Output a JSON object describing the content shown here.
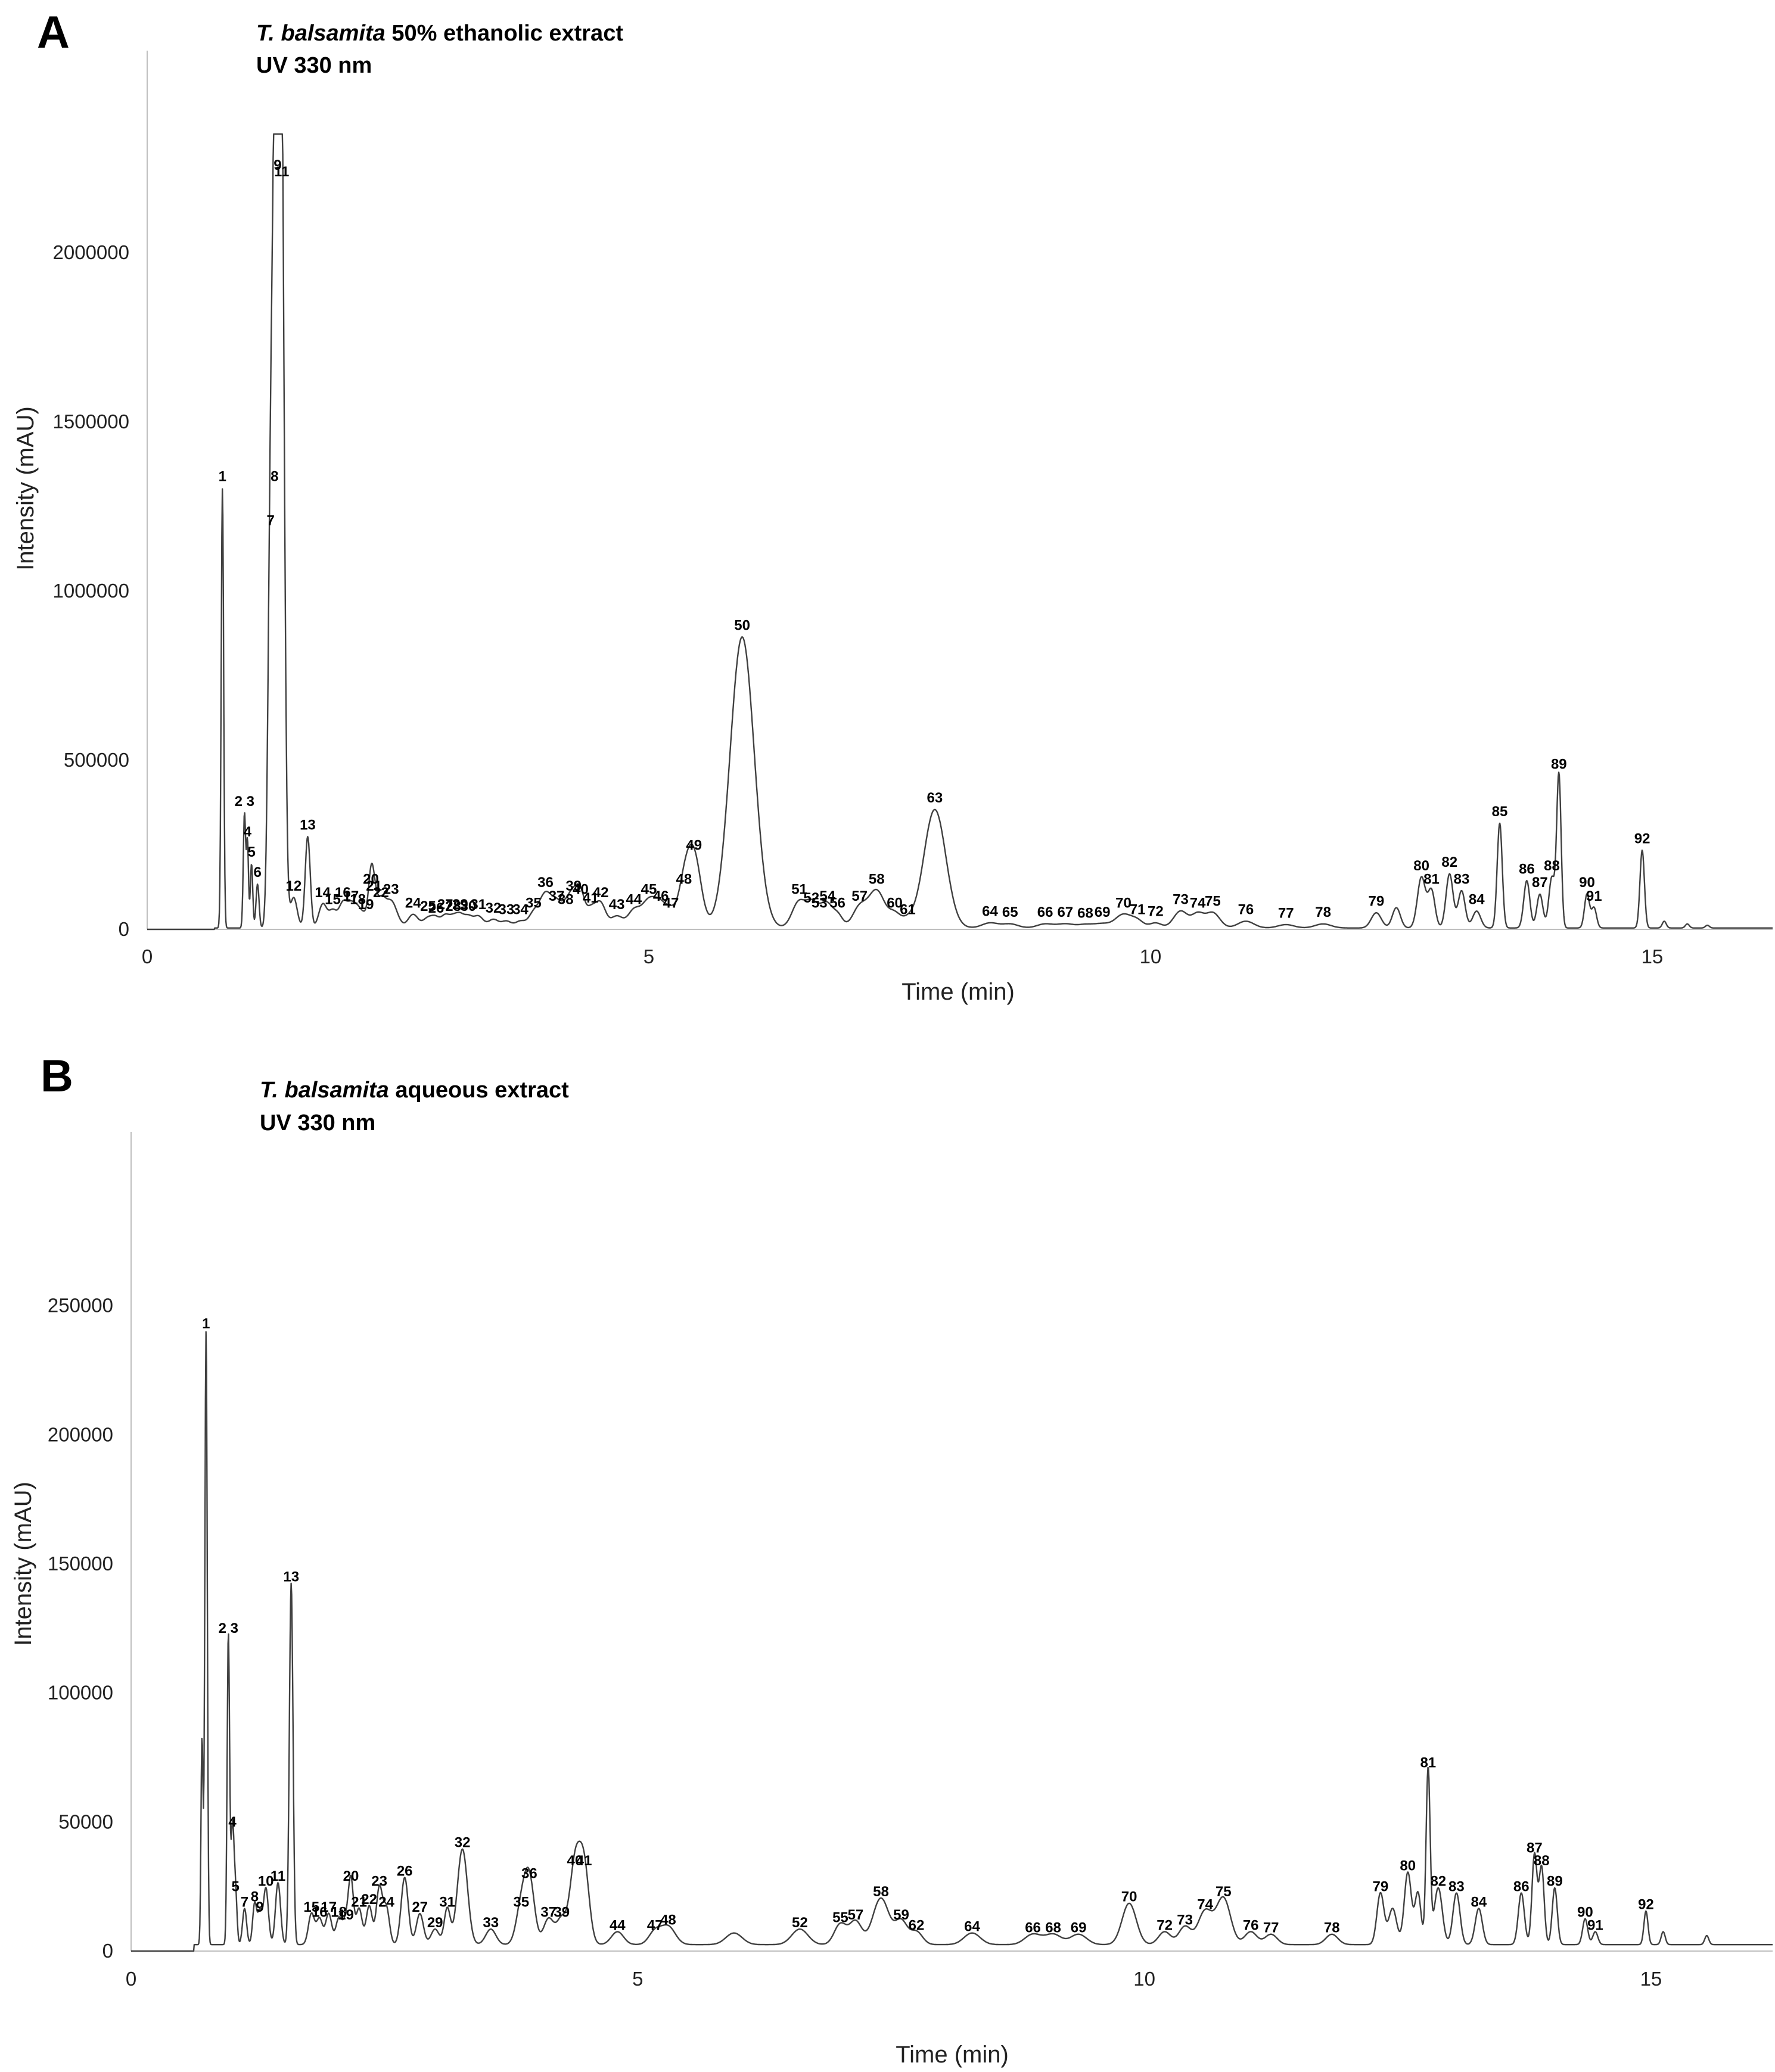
{
  "chart_data": [
    {
      "panel": "A",
      "type": "line",
      "title_italic": "T. balsamita",
      "title_rest": " 50% ethanolic extract",
      "subtitle": "UV  330 nm",
      "xlabel": "Time (min)",
      "ylabel": "Intensity (mAU)",
      "xlim": [
        0,
        16.2
      ],
      "ylim": [
        0,
        2350000
      ],
      "xticks": [
        0,
        5,
        10,
        15
      ],
      "yticks": [
        0,
        500000,
        1000000,
        1500000,
        2000000
      ],
      "baseline": 4000,
      "peaks": [
        {
          "label": "1",
          "x": 0.75,
          "y": 1300000,
          "w": 0.012
        },
        {
          "label": "2 3",
          "x": 0.97,
          "y": 340000,
          "w": 0.012
        },
        {
          "label": "4",
          "x": 1.0,
          "y": 250000,
          "w": 0.01
        },
        {
          "label": "5",
          "x": 1.04,
          "y": 190000,
          "w": 0.012
        },
        {
          "label": "6",
          "x": 1.1,
          "y": 130000,
          "w": 0.015
        },
        {
          "label": "7",
          "x": 1.23,
          "y": 1170000,
          "w": 0.025
        },
        {
          "label": "8",
          "x": 1.27,
          "y": 1300000,
          "w": 0.025
        },
        {
          "label": "9",
          "x": 1.3,
          "y": 2220000,
          "w": 0.025
        },
        {
          "label": "11",
          "x": 1.34,
          "y": 2200000,
          "w": 0.028
        },
        {
          "label": "12",
          "x": 1.46,
          "y": 90000,
          "w": 0.035
        },
        {
          "label": "13",
          "x": 1.6,
          "y": 270000,
          "w": 0.025
        },
        {
          "label": "14",
          "x": 1.75,
          "y": 70000,
          "w": 0.04
        },
        {
          "label": "15",
          "x": 1.85,
          "y": 50000,
          "w": 0.04
        },
        {
          "label": "16",
          "x": 1.95,
          "y": 70000,
          "w": 0.04
        },
        {
          "label": "17",
          "x": 2.03,
          "y": 60000,
          "w": 0.04
        },
        {
          "label": "18",
          "x": 2.1,
          "y": 50000,
          "w": 0.04
        },
        {
          "label": "19",
          "x": 2.18,
          "y": 35000,
          "w": 0.04
        },
        {
          "label": "20",
          "x": 2.23,
          "y": 110000,
          "w": 0.025
        },
        {
          "label": "21",
          "x": 2.26,
          "y": 90000,
          "w": 0.03
        },
        {
          "label": "22",
          "x": 2.33,
          "y": 70000,
          "w": 0.04
        },
        {
          "label": "23",
          "x": 2.43,
          "y": 80000,
          "w": 0.06
        },
        {
          "label": "24",
          "x": 2.65,
          "y": 40000,
          "w": 0.05
        },
        {
          "label": "25",
          "x": 2.8,
          "y": 30000,
          "w": 0.05
        },
        {
          "label": "26",
          "x": 2.88,
          "y": 25000,
          "w": 0.04
        },
        {
          "label": "27",
          "x": 2.97,
          "y": 35000,
          "w": 0.04
        },
        {
          "label": "28",
          "x": 3.05,
          "y": 30000,
          "w": 0.04
        },
        {
          "label": "29",
          "x": 3.12,
          "y": 35000,
          "w": 0.04
        },
        {
          "label": "30",
          "x": 3.2,
          "y": 30000,
          "w": 0.04
        },
        {
          "label": "31",
          "x": 3.3,
          "y": 35000,
          "w": 0.05
        },
        {
          "label": "32",
          "x": 3.45,
          "y": 25000,
          "w": 0.05
        },
        {
          "label": "33",
          "x": 3.58,
          "y": 20000,
          "w": 0.05
        },
        {
          "label": "34",
          "x": 3.72,
          "y": 20000,
          "w": 0.05
        },
        {
          "label": "35",
          "x": 3.85,
          "y": 40000,
          "w": 0.05
        },
        {
          "label": "36",
          "x": 3.97,
          "y": 100000,
          "w": 0.06
        },
        {
          "label": "37",
          "x": 4.08,
          "y": 60000,
          "w": 0.05
        },
        {
          "label": "38",
          "x": 4.17,
          "y": 50000,
          "w": 0.05
        },
        {
          "label": "39",
          "x": 4.25,
          "y": 90000,
          "w": 0.05
        },
        {
          "label": "40",
          "x": 4.32,
          "y": 80000,
          "w": 0.04
        },
        {
          "label": "41",
          "x": 4.42,
          "y": 55000,
          "w": 0.05
        },
        {
          "label": "42",
          "x": 4.52,
          "y": 70000,
          "w": 0.05
        },
        {
          "label": "43",
          "x": 4.68,
          "y": 35000,
          "w": 0.06
        },
        {
          "label": "44",
          "x": 4.85,
          "y": 50000,
          "w": 0.06
        },
        {
          "label": "45",
          "x": 5.0,
          "y": 80000,
          "w": 0.07
        },
        {
          "label": "46",
          "x": 5.12,
          "y": 60000,
          "w": 0.06
        },
        {
          "label": "47",
          "x": 5.22,
          "y": 40000,
          "w": 0.05
        },
        {
          "label": "48",
          "x": 5.35,
          "y": 110000,
          "w": 0.06
        },
        {
          "label": "49",
          "x": 5.45,
          "y": 210000,
          "w": 0.07
        },
        {
          "label": "50",
          "x": 5.93,
          "y": 860000,
          "w": 0.12
        },
        {
          "label": "51",
          "x": 6.5,
          "y": 80000,
          "w": 0.07
        },
        {
          "label": "52",
          "x": 6.62,
          "y": 55000,
          "w": 0.05
        },
        {
          "label": "53",
          "x": 6.7,
          "y": 40000,
          "w": 0.05
        },
        {
          "label": "54",
          "x": 6.78,
          "y": 60000,
          "w": 0.05
        },
        {
          "label": "56",
          "x": 6.88,
          "y": 40000,
          "w": 0.05
        },
        {
          "label": "57",
          "x": 7.1,
          "y": 60000,
          "w": 0.07
        },
        {
          "label": "58",
          "x": 7.27,
          "y": 110000,
          "w": 0.08
        },
        {
          "label": "60",
          "x": 7.45,
          "y": 40000,
          "w": 0.06
        },
        {
          "label": "61",
          "x": 7.58,
          "y": 20000,
          "w": 0.06
        },
        {
          "label": "63",
          "x": 7.85,
          "y": 350000,
          "w": 0.11
        },
        {
          "label": "64",
          "x": 8.4,
          "y": 15000,
          "w": 0.08
        },
        {
          "label": "65",
          "x": 8.6,
          "y": 12000,
          "w": 0.08
        },
        {
          "label": "66",
          "x": 8.95,
          "y": 12000,
          "w": 0.08
        },
        {
          "label": "67",
          "x": 9.15,
          "y": 12000,
          "w": 0.08
        },
        {
          "label": "68",
          "x": 9.35,
          "y": 10000,
          "w": 0.08
        },
        {
          "label": "69",
          "x": 9.52,
          "y": 12000,
          "w": 0.08
        },
        {
          "label": "70",
          "x": 9.73,
          "y": 40000,
          "w": 0.08
        },
        {
          "label": "71",
          "x": 9.87,
          "y": 20000,
          "w": 0.06
        },
        {
          "label": "72",
          "x": 10.05,
          "y": 15000,
          "w": 0.06
        },
        {
          "label": "73",
          "x": 10.3,
          "y": 50000,
          "w": 0.07
        },
        {
          "label": "74",
          "x": 10.47,
          "y": 40000,
          "w": 0.06
        },
        {
          "label": "75",
          "x": 10.62,
          "y": 45000,
          "w": 0.07
        },
        {
          "label": "76",
          "x": 10.95,
          "y": 20000,
          "w": 0.08
        },
        {
          "label": "77",
          "x": 11.35,
          "y": 10000,
          "w": 0.08
        },
        {
          "label": "78",
          "x": 11.72,
          "y": 12000,
          "w": 0.08
        },
        {
          "label": "79",
          "x": 12.25,
          "y": 45000,
          "w": 0.05
        },
        {
          "label": "",
          "x": 12.45,
          "y": 60000,
          "w": 0.04
        },
        {
          "label": "80",
          "x": 12.7,
          "y": 150000,
          "w": 0.04
        },
        {
          "label": "81",
          "x": 12.8,
          "y": 110000,
          "w": 0.035
        },
        {
          "label": "82",
          "x": 12.98,
          "y": 160000,
          "w": 0.035
        },
        {
          "label": "83",
          "x": 13.1,
          "y": 110000,
          "w": 0.035
        },
        {
          "label": "84",
          "x": 13.25,
          "y": 50000,
          "w": 0.04
        },
        {
          "label": "85",
          "x": 13.48,
          "y": 310000,
          "w": 0.025
        },
        {
          "label": "86",
          "x": 13.75,
          "y": 140000,
          "w": 0.03
        },
        {
          "label": "87",
          "x": 13.88,
          "y": 100000,
          "w": 0.03
        },
        {
          "label": "88",
          "x": 14.0,
          "y": 150000,
          "w": 0.03
        },
        {
          "label": "89",
          "x": 14.07,
          "y": 450000,
          "w": 0.022
        },
        {
          "label": "90",
          "x": 14.35,
          "y": 100000,
          "w": 0.025
        },
        {
          "label": "91",
          "x": 14.42,
          "y": 60000,
          "w": 0.025
        },
        {
          "label": "92",
          "x": 14.9,
          "y": 230000,
          "w": 0.022
        },
        {
          "label": "",
          "x": 15.12,
          "y": 20000,
          "w": 0.02
        },
        {
          "label": "",
          "x": 15.35,
          "y": 12000,
          "w": 0.02
        },
        {
          "label": "",
          "x": 15.55,
          "y": 8000,
          "w": 0.02
        }
      ]
    },
    {
      "panel": "B",
      "type": "line",
      "title_italic": "T. balsamita",
      "title_rest": " aqueous extract",
      "subtitle": "UV  330 nm",
      "xlabel": "Time (min)",
      "ylabel": "Intensity (mAU)",
      "xlim": [
        0,
        16.2
      ],
      "ylim": [
        0,
        285000
      ],
      "xticks": [
        0,
        5,
        10,
        15
      ],
      "yticks": [
        0,
        50000,
        100000,
        150000,
        200000,
        250000
      ],
      "baseline": 2500,
      "peaks": [
        {
          "label": "",
          "x": 0.7,
          "y": 80000,
          "w": 0.01
        },
        {
          "label": "1",
          "x": 0.74,
          "y": 238000,
          "w": 0.012
        },
        {
          "label": "2 3",
          "x": 0.96,
          "y": 120000,
          "w": 0.012
        },
        {
          "label": "4",
          "x": 1.0,
          "y": 45000,
          "w": 0.015
        },
        {
          "label": "5",
          "x": 1.03,
          "y": 20000,
          "w": 0.015
        },
        {
          "label": "7",
          "x": 1.12,
          "y": 14000,
          "w": 0.02
        },
        {
          "label": "8",
          "x": 1.22,
          "y": 16000,
          "w": 0.02
        },
        {
          "label": "9",
          "x": 1.27,
          "y": 12000,
          "w": 0.02
        },
        {
          "label": "10",
          "x": 1.33,
          "y": 22000,
          "w": 0.025
        },
        {
          "label": "11",
          "x": 1.45,
          "y": 24000,
          "w": 0.025
        },
        {
          "label": "13",
          "x": 1.58,
          "y": 140000,
          "w": 0.018
        },
        {
          "label": "15",
          "x": 1.78,
          "y": 12000,
          "w": 0.03
        },
        {
          "label": "16",
          "x": 1.86,
          "y": 10000,
          "w": 0.03
        },
        {
          "label": "17",
          "x": 1.95,
          "y": 12000,
          "w": 0.03
        },
        {
          "label": "18",
          "x": 2.05,
          "y": 10000,
          "w": 0.03
        },
        {
          "label": "19",
          "x": 2.12,
          "y": 9000,
          "w": 0.03
        },
        {
          "label": "20",
          "x": 2.17,
          "y": 24000,
          "w": 0.025
        },
        {
          "label": "21",
          "x": 2.25,
          "y": 14000,
          "w": 0.03
        },
        {
          "label": "22",
          "x": 2.35,
          "y": 15000,
          "w": 0.03
        },
        {
          "label": "23",
          "x": 2.45,
          "y": 22000,
          "w": 0.03
        },
        {
          "label": "24",
          "x": 2.52,
          "y": 14000,
          "w": 0.03
        },
        {
          "label": "26",
          "x": 2.7,
          "y": 26000,
          "w": 0.035
        },
        {
          "label": "27",
          "x": 2.85,
          "y": 12000,
          "w": 0.035
        },
        {
          "label": "29",
          "x": 3.0,
          "y": 6000,
          "w": 0.04
        },
        {
          "label": "31",
          "x": 3.12,
          "y": 14000,
          "w": 0.03
        },
        {
          "label": "32",
          "x": 3.27,
          "y": 37000,
          "w": 0.05
        },
        {
          "label": "33",
          "x": 3.55,
          "y": 6000,
          "w": 0.05
        },
        {
          "label": "35",
          "x": 3.85,
          "y": 14000,
          "w": 0.05
        },
        {
          "label": "36",
          "x": 3.93,
          "y": 25000,
          "w": 0.05
        },
        {
          "label": "37",
          "x": 4.12,
          "y": 10000,
          "w": 0.05
        },
        {
          "label": "39",
          "x": 4.25,
          "y": 10000,
          "w": 0.05
        },
        {
          "label": "40",
          "x": 4.38,
          "y": 30000,
          "w": 0.05
        },
        {
          "label": "41",
          "x": 4.47,
          "y": 30000,
          "w": 0.05
        },
        {
          "label": "44",
          "x": 4.8,
          "y": 5000,
          "w": 0.06
        },
        {
          "label": "47",
          "x": 5.17,
          "y": 5000,
          "w": 0.06
        },
        {
          "label": "48",
          "x": 5.3,
          "y": 7000,
          "w": 0.07
        },
        {
          "label": "",
          "x": 5.95,
          "y": 4500,
          "w": 0.08
        },
        {
          "label": "52",
          "x": 6.6,
          "y": 6000,
          "w": 0.08
        },
        {
          "label": "55",
          "x": 7.0,
          "y": 8000,
          "w": 0.06
        },
        {
          "label": "57",
          "x": 7.15,
          "y": 9000,
          "w": 0.06
        },
        {
          "label": "58",
          "x": 7.4,
          "y": 18000,
          "w": 0.08
        },
        {
          "label": "59",
          "x": 7.6,
          "y": 9000,
          "w": 0.06
        },
        {
          "label": "62",
          "x": 7.75,
          "y": 5000,
          "w": 0.06
        },
        {
          "label": "64",
          "x": 8.3,
          "y": 4500,
          "w": 0.08
        },
        {
          "label": "66",
          "x": 8.9,
          "y": 4000,
          "w": 0.08
        },
        {
          "label": "68",
          "x": 9.1,
          "y": 4000,
          "w": 0.08
        },
        {
          "label": "69",
          "x": 9.35,
          "y": 4000,
          "w": 0.08
        },
        {
          "label": "70",
          "x": 9.85,
          "y": 16000,
          "w": 0.07
        },
        {
          "label": "72",
          "x": 10.2,
          "y": 5000,
          "w": 0.06
        },
        {
          "label": "73",
          "x": 10.4,
          "y": 7000,
          "w": 0.06
        },
        {
          "label": "74",
          "x": 10.6,
          "y": 13000,
          "w": 0.07
        },
        {
          "label": "75",
          "x": 10.78,
          "y": 18000,
          "w": 0.07
        },
        {
          "label": "76",
          "x": 11.05,
          "y": 5000,
          "w": 0.06
        },
        {
          "label": "77",
          "x": 11.25,
          "y": 4000,
          "w": 0.06
        },
        {
          "label": "78",
          "x": 11.85,
          "y": 4000,
          "w": 0.06
        },
        {
          "label": "79",
          "x": 12.33,
          "y": 20000,
          "w": 0.035
        },
        {
          "label": "",
          "x": 12.45,
          "y": 14000,
          "w": 0.04
        },
        {
          "label": "80",
          "x": 12.6,
          "y": 28000,
          "w": 0.035
        },
        {
          "label": "",
          "x": 12.7,
          "y": 20000,
          "w": 0.03
        },
        {
          "label": "81",
          "x": 12.8,
          "y": 68000,
          "w": 0.02
        },
        {
          "label": "82",
          "x": 12.9,
          "y": 22000,
          "w": 0.04
        },
        {
          "label": "83",
          "x": 13.08,
          "y": 20000,
          "w": 0.035
        },
        {
          "label": "84",
          "x": 13.3,
          "y": 14000,
          "w": 0.035
        },
        {
          "label": "86",
          "x": 13.72,
          "y": 20000,
          "w": 0.03
        },
        {
          "label": "87",
          "x": 13.85,
          "y": 35000,
          "w": 0.025
        },
        {
          "label": "88",
          "x": 13.92,
          "y": 30000,
          "w": 0.025
        },
        {
          "label": "89",
          "x": 14.05,
          "y": 22000,
          "w": 0.025
        },
        {
          "label": "90",
          "x": 14.35,
          "y": 10000,
          "w": 0.025
        },
        {
          "label": "91",
          "x": 14.45,
          "y": 5000,
          "w": 0.025
        },
        {
          "label": "92",
          "x": 14.95,
          "y": 13000,
          "w": 0.02
        },
        {
          "label": "",
          "x": 15.12,
          "y": 5000,
          "w": 0.02
        },
        {
          "label": "",
          "x": 15.55,
          "y": 3500,
          "w": 0.02
        }
      ]
    }
  ]
}
